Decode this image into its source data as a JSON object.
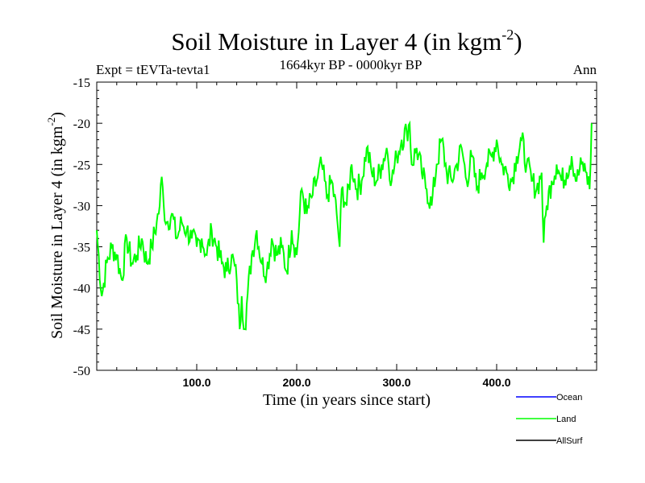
{
  "chart_data": {
    "type": "line",
    "title": "Soil Moisture in Layer 4 (in kgm",
    "title_sup": "-2",
    "title_end": ")",
    "subtitle": "1664kyr BP - 0000kyr BP",
    "experiment": "Expt = tEVTa-tevta1",
    "season": "Ann",
    "xlabel": "Time (in years since start)",
    "ylabel": "Soil Moisture in Layer 4 (in kgm",
    "ylabel_sup": "-2",
    "ylabel_end": ")",
    "xlim": [
      0,
      500
    ],
    "ylim": [
      -50,
      -15
    ],
    "x_ticks": [
      100,
      200,
      300,
      400
    ],
    "x_tick_labels": [
      "100.0",
      "200.0",
      "300.0",
      "400.0"
    ],
    "y_ticks": [
      -15,
      -20,
      -25,
      -30,
      -35,
      -40,
      -45,
      -50
    ],
    "y_tick_labels": [
      "-15",
      "-20",
      "-25",
      "-30",
      "-35",
      "-40",
      "-45",
      "-50"
    ],
    "legend": [
      {
        "name": "Ocean",
        "color": "#0000ff"
      },
      {
        "name": "Land",
        "color": "#00ff00"
      },
      {
        "name": "AllSurf",
        "color": "#000000"
      }
    ],
    "series": [
      {
        "name": "Land",
        "color": "#00ff00",
        "x": [
          0,
          5,
          10,
          15,
          20,
          25,
          30,
          35,
          40,
          45,
          50,
          55,
          60,
          63,
          65,
          67,
          70,
          75,
          80,
          85,
          90,
          95,
          100,
          105,
          110,
          115,
          120,
          125,
          130,
          135,
          140,
          143,
          145,
          148,
          150,
          155,
          160,
          165,
          170,
          175,
          180,
          185,
          190,
          195,
          200,
          205,
          210,
          215,
          220,
          225,
          230,
          235,
          240,
          243,
          245,
          250,
          255,
          260,
          265,
          270,
          275,
          280,
          285,
          290,
          295,
          300,
          305,
          310,
          313,
          315,
          320,
          325,
          330,
          335,
          340,
          345,
          350,
          355,
          360,
          365,
          370,
          375,
          380,
          385,
          390,
          395,
          400,
          405,
          410,
          415,
          420,
          425,
          430,
          435,
          440,
          445,
          447,
          450,
          455,
          460,
          465,
          470,
          475,
          480,
          485,
          490,
          493,
          495
        ],
        "values": [
          -33,
          -41,
          -37,
          -35,
          -36,
          -39,
          -34,
          -37,
          -36,
          -34,
          -37,
          -35,
          -32,
          -30,
          -26.5,
          -30,
          -32,
          -31,
          -34,
          -32,
          -33,
          -34,
          -35,
          -34,
          -36,
          -33,
          -35,
          -37,
          -38,
          -36,
          -39,
          -45,
          -41,
          -45,
          -42,
          -36,
          -33,
          -37,
          -38,
          -34,
          -36,
          -35,
          -38,
          -33,
          -36,
          -28,
          -31,
          -29,
          -27,
          -25,
          -29,
          -27,
          -31,
          -35,
          -28,
          -30,
          -25,
          -28,
          -27,
          -23,
          -26,
          -27,
          -25,
          -23,
          -27,
          -24,
          -22,
          -21,
          -20,
          -25,
          -23,
          -26,
          -28,
          -30,
          -25,
          -22,
          -26,
          -27,
          -25,
          -23,
          -27,
          -24,
          -28,
          -26,
          -25,
          -24,
          -22,
          -25,
          -26,
          -27,
          -24,
          -22,
          -25,
          -27,
          -28,
          -26,
          -34.5,
          -30,
          -27,
          -25,
          -27,
          -26,
          -24,
          -27,
          -25,
          -26,
          -28,
          -20
        ]
      }
    ]
  }
}
